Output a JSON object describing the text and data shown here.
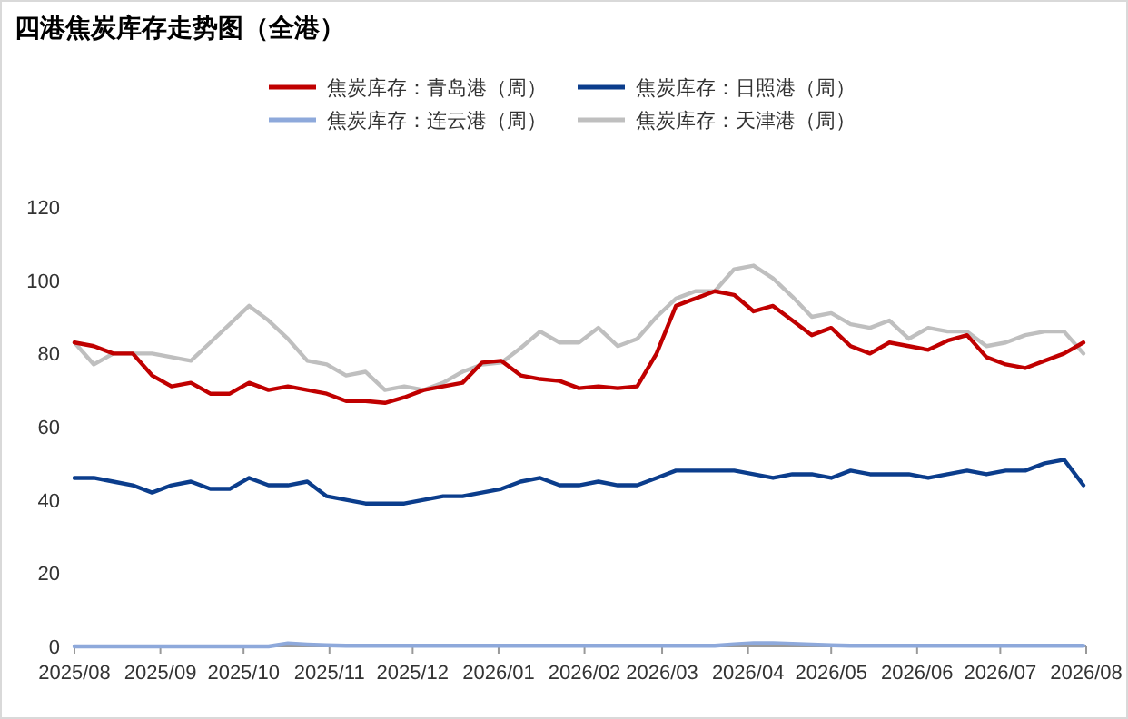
{
  "chart_data": {
    "type": "line",
    "title": "四港焦炭库存走势图（全港）",
    "x": [
      "2025-08-01",
      "2025-08-08",
      "2025-08-15",
      "2025-08-22",
      "2025-08-29",
      "2025-09-05",
      "2025-09-12",
      "2025-09-19",
      "2025-09-26",
      "2025-10-03",
      "2025-10-10",
      "2025-10-17",
      "2025-10-24",
      "2025-10-31",
      "2025-11-07",
      "2025-11-14",
      "2025-11-21",
      "2025-11-28",
      "2025-12-05",
      "2025-12-12",
      "2025-12-19",
      "2025-12-26",
      "2026-01-02",
      "2026-01-09",
      "2026-01-16",
      "2026-01-23",
      "2026-01-30",
      "2026-02-06",
      "2026-02-13",
      "2026-02-20",
      "2026-02-27",
      "2026-03-06",
      "2026-03-13",
      "2026-03-20",
      "2026-03-27",
      "2026-04-03",
      "2026-04-10",
      "2026-04-17",
      "2026-04-24",
      "2026-05-01",
      "2026-05-08",
      "2026-05-15",
      "2026-05-22",
      "2026-05-29",
      "2026-06-05",
      "2026-06-12",
      "2026-06-19",
      "2026-06-26",
      "2026-07-03",
      "2026-07-10",
      "2026-07-17",
      "2026-07-24",
      "2026-07-31"
    ],
    "series": [
      {
        "name": "焦炭库存：青岛港（周）",
        "color": "#c00000",
        "values": [
          83,
          82,
          80,
          80,
          74,
          71,
          72,
          69,
          69,
          72,
          70,
          71,
          70,
          69,
          67,
          67,
          66.5,
          68,
          70,
          71,
          72,
          77.5,
          78,
          74,
          73,
          72.5,
          70.5,
          71,
          70.5,
          71,
          80,
          93,
          95,
          97,
          96,
          91.5,
          93,
          89,
          85,
          87,
          82,
          80,
          83,
          82,
          81,
          83.5,
          85,
          79,
          77,
          76,
          78,
          80,
          83
        ]
      },
      {
        "name": "焦炭库存：日照港（周）",
        "color": "#0b3d8c",
        "values": [
          46,
          46,
          45,
          44,
          42,
          44,
          45,
          43,
          43,
          46,
          44,
          44,
          45,
          41,
          40,
          39,
          39,
          39,
          40,
          41,
          41,
          42,
          43,
          45,
          46,
          44,
          44,
          45,
          44,
          44,
          46,
          48,
          48,
          48,
          48,
          47,
          46,
          47,
          47,
          46,
          48,
          47,
          47,
          47,
          46,
          47,
          48,
          47,
          48,
          48,
          50,
          51,
          44
        ]
      },
      {
        "name": "焦炭库存：连云港（周）",
        "color": "#8ea9db",
        "values": [
          0,
          0,
          0,
          0,
          0,
          0,
          0,
          0,
          0,
          0,
          0,
          0.8,
          0.5,
          0.3,
          0.2,
          0.2,
          0.2,
          0.2,
          0.2,
          0.2,
          0.2,
          0.2,
          0.2,
          0.2,
          0.2,
          0.2,
          0.2,
          0.2,
          0.2,
          0.2,
          0.2,
          0.2,
          0.2,
          0.2,
          0.6,
          0.9,
          0.9,
          0.7,
          0.5,
          0.3,
          0.2,
          0.2,
          0.2,
          0.2,
          0.2,
          0.2,
          0.2,
          0.2,
          0.2,
          0.2,
          0.2,
          0.2,
          0.2
        ]
      },
      {
        "name": "焦炭库存：天津港（周）",
        "color": "#bfbfbf",
        "values": [
          83,
          77,
          80,
          80,
          80,
          79,
          78,
          83,
          88,
          93,
          89,
          84,
          78,
          77,
          74,
          75,
          70,
          71,
          70,
          72,
          75,
          77,
          77.5,
          81.5,
          86,
          83,
          83,
          87,
          82,
          84,
          90,
          95,
          97,
          97,
          103,
          104,
          100.5,
          95.5,
          90,
          91,
          88,
          87,
          89,
          84,
          87,
          86,
          86,
          82,
          83,
          85,
          86,
          86,
          80
        ]
      }
    ],
    "xlim": [
      "2025-08-01",
      "2026-08-01"
    ],
    "xticks": [
      {
        "value": "2025-08-01",
        "label": "2025/08"
      },
      {
        "value": "2025-09-01",
        "label": "2025/09"
      },
      {
        "value": "2025-10-01",
        "label": "2025/10"
      },
      {
        "value": "2025-11-01",
        "label": "2025/11"
      },
      {
        "value": "2025-12-01",
        "label": "2025/12"
      },
      {
        "value": "2026-01-01",
        "label": "2026/01"
      },
      {
        "value": "2026-02-01",
        "label": "2026/02"
      },
      {
        "value": "2026-03-01",
        "label": "2026/03"
      },
      {
        "value": "2026-04-01",
        "label": "2026/04"
      },
      {
        "value": "2026-05-01",
        "label": "2026/05"
      },
      {
        "value": "2026-06-01",
        "label": "2026/06"
      },
      {
        "value": "2026-07-01",
        "label": "2026/07"
      },
      {
        "value": "2026-08-01",
        "label": "2026/08"
      }
    ],
    "ylim": [
      0,
      120
    ],
    "yticks": [
      0,
      20,
      40,
      60,
      80,
      100,
      120
    ],
    "grid": false,
    "legend": "top",
    "marker": "none",
    "line_style": "solid"
  }
}
